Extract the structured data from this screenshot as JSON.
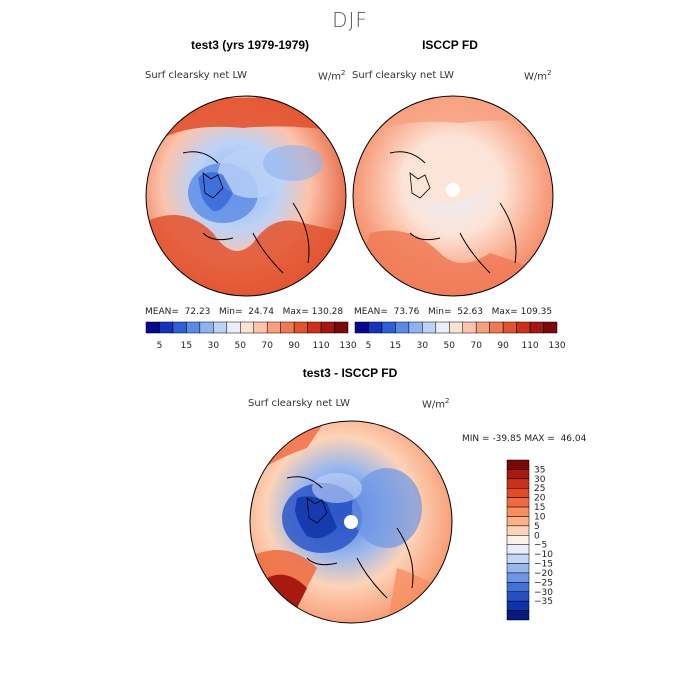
{
  "season": "DJF",
  "panels": [
    {
      "title": "test3 (yrs 1979-1979)",
      "variable": "Surf clearsky net LW",
      "units_base": "W/m",
      "units_exp": "2",
      "stats": {
        "mean_label": "MEAN=",
        "mean": "72.23",
        "min_label": "Min=",
        "min": "24.74",
        "max_label": "Max=",
        "max": "130.28"
      }
    },
    {
      "title": "ISCCP FD",
      "variable": "Surf clearsky net LW",
      "units_base": "W/m",
      "units_exp": "2",
      "stats": {
        "mean_label": "MEAN=",
        "mean": "73.76",
        "min_label": "Min=",
        "min": "52.63",
        "max_label": "Max=",
        "max": "109.35"
      }
    }
  ],
  "diff_panel": {
    "title": "test3 - ISCCP FD",
    "variable": "Surf clearsky net LW",
    "units_base": "W/m",
    "units_exp": "2",
    "stats": {
      "min_label": "MIN =",
      "min": "-39.85",
      "max_label": "MAX =",
      "max": "46.04"
    }
  },
  "top_colorbar": {
    "labels": [
      "5",
      "15",
      "30",
      "50",
      "70",
      "90",
      "110",
      "130"
    ],
    "colors": [
      "#08088a",
      "#1433b8",
      "#2e5fd6",
      "#5b8be6",
      "#8fb3f0",
      "#bcd2f7",
      "#e7eefc",
      "#fde3d6",
      "#fcc3aa",
      "#f7a07f",
      "#f07a56",
      "#e2522f",
      "#cc3018",
      "#a51610",
      "#7a0a0a"
    ]
  },
  "diff_colorbar": {
    "labels": [
      "35",
      "30",
      "25",
      "20",
      "15",
      "10",
      "5",
      "0",
      "−5",
      "−10",
      "−15",
      "−20",
      "−25",
      "−30",
      "−35"
    ],
    "colors": [
      "#7a0808",
      "#a81a10",
      "#c8321a",
      "#e04a25",
      "#ef6a3e",
      "#f68e62",
      "#fab089",
      "#fdd3b8",
      "#fdf0e6",
      "#e6eefc",
      "#c3d6f6",
      "#97b7ee",
      "#6e96e4",
      "#4471d8",
      "#2550c4",
      "#0f32a8",
      "#061a80"
    ]
  },
  "chart_data": [
    {
      "type": "heatmap",
      "projection": "north polar stereographic",
      "title": "test3 (yrs 1979-1979)",
      "variable": "Surf clearsky net LW",
      "units": "W/m^2",
      "mean": 72.23,
      "min": 24.74,
      "max": 130.28,
      "color_levels": [
        5,
        15,
        30,
        50,
        70,
        90,
        110,
        130
      ]
    },
    {
      "type": "heatmap",
      "projection": "north polar stereographic",
      "title": "ISCCP FD",
      "variable": "Surf clearsky net LW",
      "units": "W/m^2",
      "mean": 73.76,
      "min": 52.63,
      "max": 109.35,
      "color_levels": [
        5,
        15,
        30,
        50,
        70,
        90,
        110,
        130
      ]
    },
    {
      "type": "heatmap",
      "projection": "north polar stereographic",
      "title": "test3 - ISCCP FD",
      "variable": "Surf clearsky net LW",
      "units": "W/m^2",
      "min": -39.85,
      "max": 46.04,
      "color_levels": [
        35,
        30,
        25,
        20,
        15,
        10,
        5,
        0,
        -5,
        -10,
        -15,
        -20,
        -25,
        -30,
        -35
      ]
    }
  ]
}
